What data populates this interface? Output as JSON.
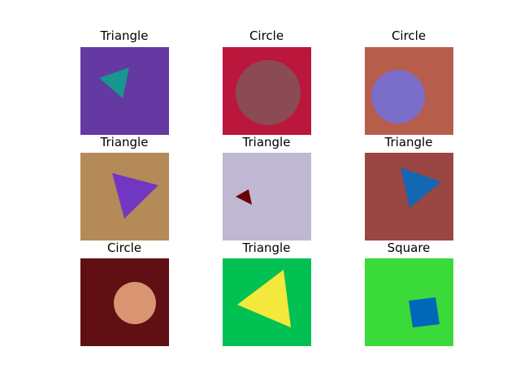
{
  "panels": [
    {
      "title": "Triangle",
      "shape": "triangle",
      "background": "#6439a2",
      "fill": "#18968f"
    },
    {
      "title": "Circle",
      "shape": "circle",
      "background": "#bb163b",
      "fill": "#8a4b54"
    },
    {
      "title": "Circle",
      "shape": "circle",
      "background": "#b75d4b",
      "fill": "#7b6ec9"
    },
    {
      "title": "Triangle",
      "shape": "triangle",
      "background": "#b38a58",
      "fill": "#7137c2"
    },
    {
      "title": "Triangle",
      "shape": "triangle",
      "background": "#c0b7d2",
      "fill": "#6b0007"
    },
    {
      "title": "Triangle",
      "shape": "triangle",
      "background": "#9a4642",
      "fill": "#1367b3"
    },
    {
      "title": "Circle",
      "shape": "circle",
      "background": "#600f13",
      "fill": "#d99572"
    },
    {
      "title": "Triangle",
      "shape": "triangle",
      "background": "#00c152",
      "fill": "#f3e83b"
    },
    {
      "title": "Square",
      "shape": "square",
      "background": "#39da39",
      "fill": "#0068b8"
    }
  ]
}
